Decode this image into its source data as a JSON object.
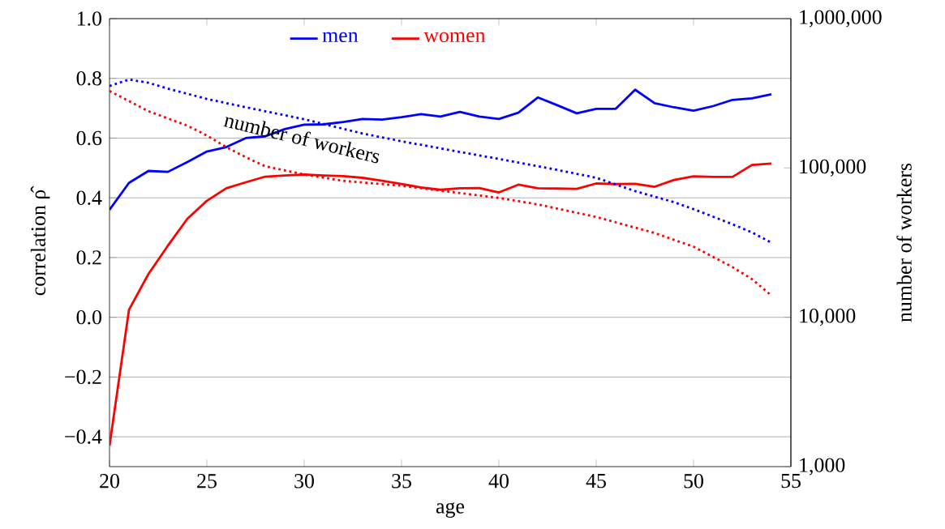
{
  "chart_data": {
    "type": "line",
    "xlabel": "age",
    "ylabel": "correlation ρ̂",
    "y2label": "number of workers",
    "x": [
      20,
      21,
      22,
      23,
      24,
      25,
      26,
      27,
      28,
      29,
      30,
      31,
      32,
      33,
      34,
      35,
      36,
      37,
      38,
      39,
      40,
      41,
      42,
      43,
      44,
      45,
      46,
      47,
      48,
      49,
      50,
      51,
      52,
      53,
      54
    ],
    "series": [
      {
        "name": "men",
        "color": "#0000ff",
        "line_style": "solid",
        "values": [
          0.36,
          0.45,
          0.49,
          0.487,
          0.52,
          0.555,
          0.57,
          0.6,
          0.606,
          0.63,
          0.645,
          0.646,
          0.654,
          0.664,
          0.662,
          0.67,
          0.68,
          0.672,
          0.688,
          0.672,
          0.664,
          0.685,
          0.736,
          0.71,
          0.683,
          0.698,
          0.698,
          0.762,
          0.717,
          0.703,
          0.692,
          0.707,
          0.728,
          0.733,
          0.747
        ]
      },
      {
        "name": "women",
        "color": "#ff0000",
        "line_style": "solid",
        "values": [
          -0.43,
          0.025,
          0.145,
          0.24,
          0.33,
          0.39,
          0.432,
          0.452,
          0.471,
          0.475,
          0.478,
          0.475,
          0.473,
          0.467,
          0.457,
          0.446,
          0.435,
          0.427,
          0.432,
          0.433,
          0.418,
          0.444,
          0.432,
          0.431,
          0.43,
          0.448,
          0.446,
          0.447,
          0.437,
          0.46,
          0.472,
          0.47,
          0.47,
          0.51,
          0.515
        ]
      },
      {
        "color": "#0000ff",
        "line_style": "dotted",
        "axis": "y2",
        "x": [
          20,
          21,
          22,
          23,
          25,
          27,
          30,
          33,
          35,
          38,
          40,
          43,
          45,
          47,
          49,
          50,
          52,
          53,
          54
        ],
        "values": [
          354000,
          391000,
          372000,
          340000,
          290000,
          255000,
          212000,
          170000,
          151000,
          128000,
          115000,
          97000,
          86000,
          70000,
          59000,
          53000,
          42000,
          37000,
          31600
        ]
      },
      {
        "color": "#ff0000",
        "line_style": "dotted",
        "axis": "y2",
        "x": [
          20,
          22,
          24,
          25,
          26,
          27,
          28,
          30,
          32,
          35,
          40,
          42,
          45,
          48,
          50,
          52,
          53,
          54
        ],
        "values": [
          328000,
          240000,
          192000,
          165000,
          138000,
          118000,
          102600,
          90500,
          82000,
          76000,
          63000,
          57000,
          47000,
          36700,
          29700,
          21700,
          18000,
          14000
        ]
      }
    ],
    "xlim": [
      20,
      55
    ],
    "xticks": [
      20,
      25,
      30,
      35,
      40,
      45,
      50,
      55
    ],
    "ylim": [
      -0.5,
      1.0
    ],
    "yticks": [
      {
        "value": -0.4,
        "label": "−0.4"
      },
      {
        "value": -0.2,
        "label": "−0.2"
      },
      {
        "value": 0,
        "label": "0.0"
      },
      0.2,
      0.4,
      0.6,
      0.8,
      {
        "value": 1.0,
        "label": "1.0"
      }
    ],
    "y2lim": [
      1000,
      1000000
    ],
    "y2ticks": [
      {
        "value": 1000,
        "label": "1,000"
      },
      {
        "value": 10000,
        "label": "10,000"
      },
      {
        "value": 100000,
        "label": "100,000"
      },
      {
        "value": 1000000,
        "label": "1,000,000"
      }
    ],
    "log": "y2",
    "grid": "y",
    "legend": "top",
    "marker": "none",
    "annotations": [
      "number of workers"
    ]
  }
}
